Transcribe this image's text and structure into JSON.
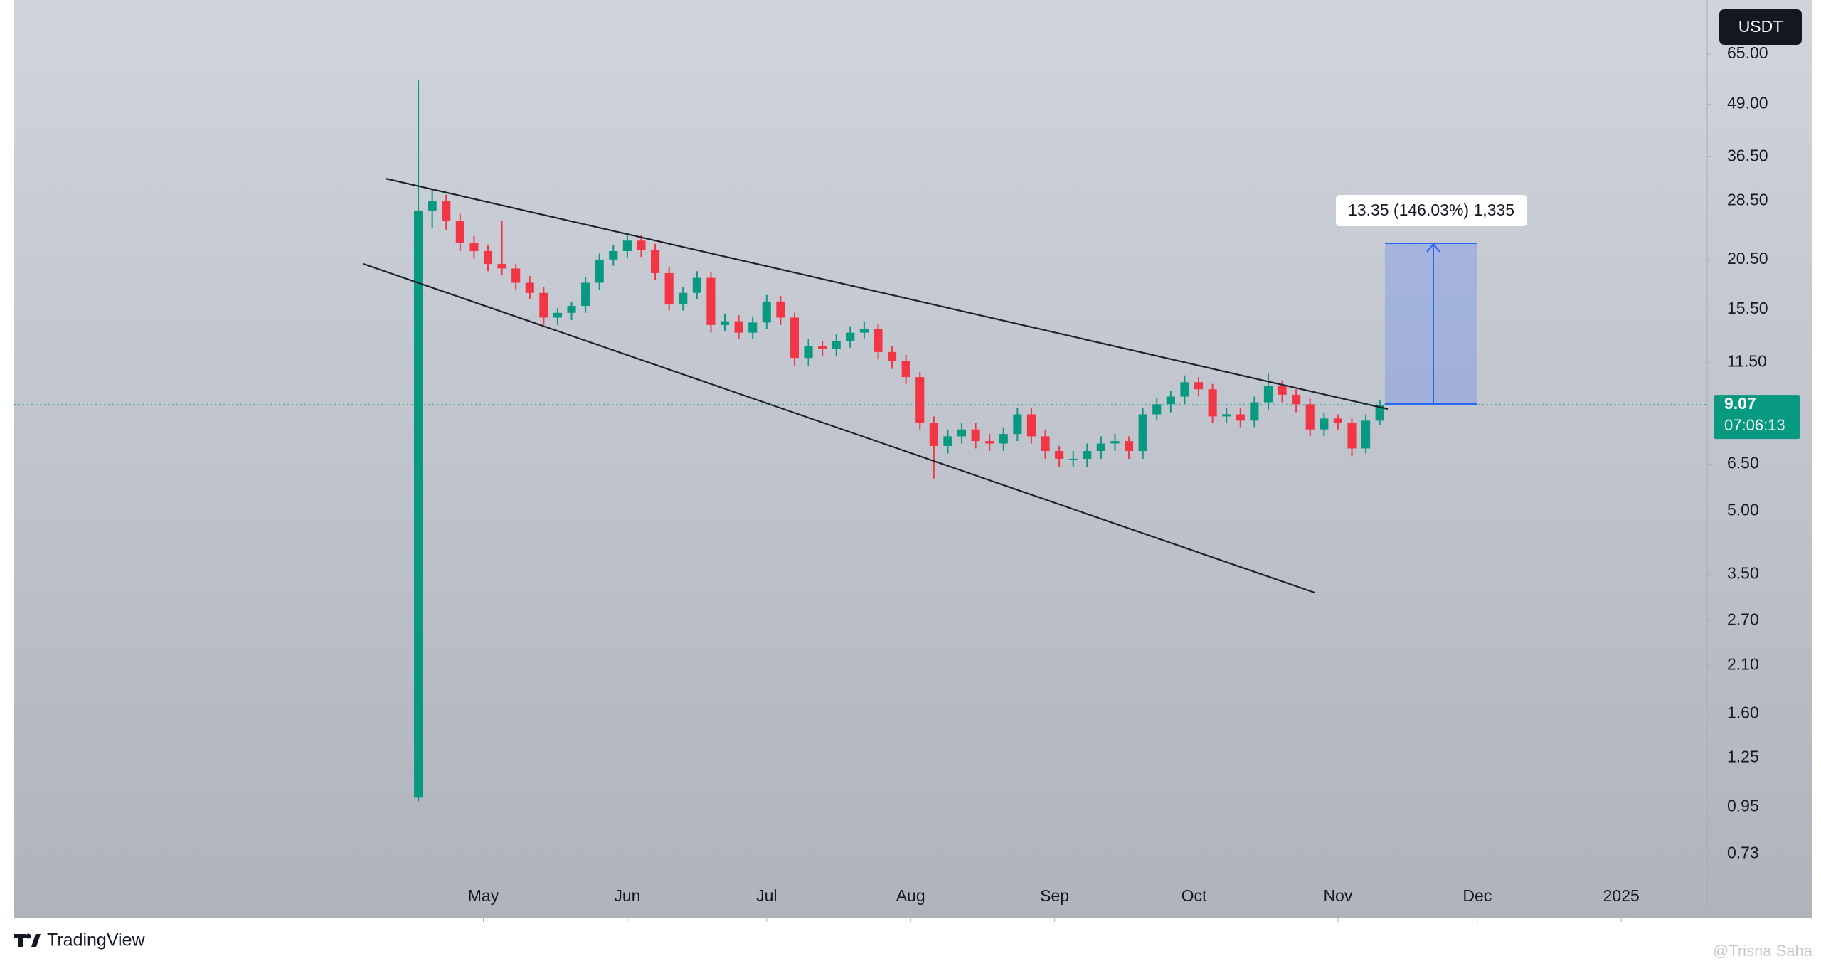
{
  "chart_data": {
    "type": "candlestick",
    "currency": "USDT",
    "log_scale": true,
    "grid": false,
    "up_color": "#089981",
    "down_color": "#f23645",
    "x": [
      -14,
      -11,
      -8,
      -5,
      -2,
      1,
      4,
      7,
      10,
      13,
      16,
      19,
      22,
      25,
      28,
      31,
      34,
      37,
      40,
      43,
      46,
      49,
      52,
      55,
      58,
      61,
      64,
      67,
      70,
      73,
      76,
      79,
      82,
      85,
      88,
      91,
      94,
      97,
      100,
      103,
      106,
      109,
      112,
      115,
      118,
      121,
      124,
      127,
      130,
      133,
      136,
      139,
      142,
      145,
      148,
      151,
      154,
      157,
      160,
      163,
      166,
      169,
      172,
      175,
      178,
      181,
      184,
      187,
      190,
      193
    ],
    "open": [
      1.0,
      27,
      28.5,
      25.5,
      22.5,
      21.5,
      20,
      19.5,
      18,
      17,
      14.8,
      15.2,
      15.8,
      18,
      20.5,
      21.5,
      22.8,
      21.6,
      19,
      16,
      17,
      18.5,
      14.2,
      14.5,
      13.6,
      14.4,
      16.2,
      14.8,
      11.8,
      12.6,
      12.4,
      13,
      13.6,
      13.9,
      12.2,
      11.6,
      10.6,
      8.2,
      7.2,
      7.6,
      7.9,
      7.4,
      7.3,
      7.7,
      8.6,
      7.6,
      7.0,
      6.7,
      6.7,
      7.0,
      7.3,
      7.4,
      7.0,
      8.6,
      9.1,
      9.5,
      10.3,
      9.9,
      8.5,
      8.6,
      8.3,
      9.2,
      10.1,
      9.6,
      9.1,
      7.9,
      8.4,
      8.2,
      7.1,
      8.3
    ],
    "high": [
      56,
      30.5,
      29.5,
      26.5,
      23.4,
      22.3,
      25.5,
      20,
      18.7,
      17.6,
      15.6,
      16.2,
      18.6,
      21.2,
      22.2,
      23.8,
      23.5,
      22.4,
      19.6,
      17.6,
      19.2,
      19.1,
      15.1,
      15,
      14.9,
      16.8,
      16.7,
      15.2,
      13.1,
      13,
      13.5,
      14.1,
      14.5,
      14.3,
      12.6,
      12,
      10.9,
      8.5,
      7.9,
      8.2,
      8.2,
      7.7,
      8,
      8.9,
      8.9,
      7.9,
      7.2,
      7,
      7.3,
      7.6,
      7.7,
      7.6,
      8.9,
      9.4,
      9.8,
      10.7,
      10.6,
      10.2,
      8.9,
      8.9,
      9.5,
      10.8,
      10.4,
      9.9,
      9.4,
      8.7,
      8.6,
      8.4,
      8.6,
      9.3
    ],
    "low": [
      0.98,
      24.5,
      24.2,
      21.5,
      20.6,
      19.2,
      18.8,
      17.3,
      16.4,
      14.2,
      14.2,
      14.6,
      15.2,
      17.3,
      19.8,
      20.7,
      20.8,
      18.3,
      15.4,
      15.4,
      16.4,
      13.6,
      13.7,
      13.1,
      13.1,
      13.9,
      14.2,
      11.3,
      11.3,
      11.9,
      11.9,
      12.5,
      13.1,
      11.7,
      11.1,
      10.2,
      7.9,
      6.0,
      6.9,
      7.3,
      7.1,
      7,
      7,
      7.4,
      7.3,
      6.7,
      6.4,
      6.4,
      6.4,
      6.7,
      7,
      6.7,
      6.7,
      8.3,
      8.7,
      9.1,
      9.5,
      8.2,
      8.2,
      8,
      8,
      8.8,
      9.2,
      8.7,
      7.6,
      7.6,
      7.9,
      6.8,
      6.9,
      8.1
    ],
    "close": [
      27,
      28.5,
      25.5,
      22.5,
      21.5,
      20,
      19.5,
      18,
      17,
      14.8,
      15.2,
      15.8,
      18,
      20.5,
      21.5,
      22.8,
      21.6,
      19,
      16,
      17,
      18.5,
      14.2,
      14.5,
      13.6,
      14.4,
      16.2,
      14.8,
      11.8,
      12.6,
      12.4,
      13,
      13.6,
      13.9,
      12.2,
      11.6,
      10.6,
      8.2,
      7.2,
      7.6,
      7.9,
      7.4,
      7.3,
      7.7,
      8.6,
      7.6,
      7.0,
      6.7,
      6.7,
      7.0,
      7.3,
      7.4,
      7.0,
      8.6,
      9.1,
      9.5,
      10.3,
      9.9,
      8.5,
      8.6,
      8.3,
      9.2,
      10.1,
      9.6,
      9.1,
      7.9,
      8.4,
      8.2,
      7.1,
      8.3,
      9.07
    ],
    "current_price": 9.07,
    "countdown": "07:06:13",
    "measurement_label": "13.35 (146.03%) 1,335",
    "xlim": [
      -101,
      263.5
    ],
    "xticks": [
      {
        "value": 0,
        "label": "May"
      },
      {
        "value": 31,
        "label": "Jun"
      },
      {
        "value": 61,
        "label": "Jul"
      },
      {
        "value": 92,
        "label": "Aug"
      },
      {
        "value": 123,
        "label": "Sep"
      },
      {
        "value": 153,
        "label": "Oct"
      },
      {
        "value": 184,
        "label": "Nov"
      },
      {
        "value": 214,
        "label": "Dec"
      },
      {
        "value": 245,
        "label": "2025"
      }
    ],
    "ylim": [
      0.51,
      88
    ],
    "yticks": [
      {
        "value": 65,
        "label": "65.00"
      },
      {
        "value": 49,
        "label": "49.00"
      },
      {
        "value": 36.5,
        "label": "36.50"
      },
      {
        "value": 28.5,
        "label": "28.50"
      },
      {
        "value": 20.5,
        "label": "20.50"
      },
      {
        "value": 15.5,
        "label": "15.50"
      },
      {
        "value": 11.5,
        "label": "11.50"
      },
      {
        "value": 6.5,
        "label": "6.50"
      },
      {
        "value": 5,
        "label": "5.00"
      },
      {
        "value": 3.5,
        "label": "3.50"
      },
      {
        "value": 2.7,
        "label": "2.70"
      },
      {
        "value": 2.1,
        "label": "2.10"
      },
      {
        "value": 1.6,
        "label": "1.60"
      },
      {
        "value": 1.25,
        "label": "1.25"
      },
      {
        "value": 0.95,
        "label": "0.95"
      },
      {
        "value": 0.73,
        "label": "0.73"
      }
    ]
  },
  "footer": {
    "brand": "TradingView",
    "watermark": "@Trisna Saha"
  }
}
